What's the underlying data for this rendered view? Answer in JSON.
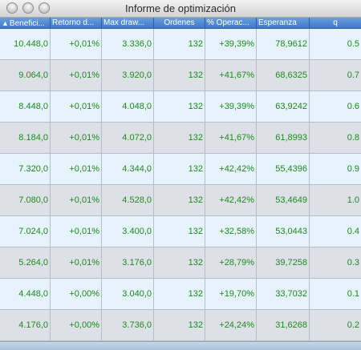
{
  "window": {
    "title": "Informe de optimización"
  },
  "columns": [
    {
      "label": "Benefici...",
      "sorted": true
    },
    {
      "label": "Retorno d..."
    },
    {
      "label": "Max draw..."
    },
    {
      "label": "Ordenes"
    },
    {
      "label": "% Operac..."
    },
    {
      "label": "Esperanza"
    },
    {
      "label": "q"
    }
  ],
  "rows": [
    [
      "10.448,0",
      "+0,01%",
      "3.336,0",
      "132",
      "+39,39%",
      "78,9612",
      "0.5"
    ],
    [
      "9.064,0",
      "+0,01%",
      "3.920,0",
      "132",
      "+41,67%",
      "68,6325",
      "0.7"
    ],
    [
      "8.448,0",
      "+0,01%",
      "4.048,0",
      "132",
      "+39,39%",
      "63,9242",
      "0.6"
    ],
    [
      "8.184,0",
      "+0,01%",
      "4.072,0",
      "132",
      "+41,67%",
      "61,8993",
      "0.8"
    ],
    [
      "7.320,0",
      "+0,01%",
      "4.344,0",
      "132",
      "+42,42%",
      "55,4396",
      "0.9"
    ],
    [
      "7.080,0",
      "+0,01%",
      "4.528,0",
      "132",
      "+42,42%",
      "53,4649",
      "1.0"
    ],
    [
      "7.024,0",
      "+0,01%",
      "3.400,0",
      "132",
      "+32,58%",
      "53,0443",
      "0.4"
    ],
    [
      "5.264,0",
      "+0,01%",
      "3.176,0",
      "132",
      "+28,79%",
      "39,7258",
      "0.3"
    ],
    [
      "4.448,0",
      "+0,00%",
      "3.040,0",
      "132",
      "+19,70%",
      "33,7032",
      "0.1"
    ],
    [
      "4.176,0",
      "+0,00%",
      "3.736,0",
      "132",
      "+24,24%",
      "31,6268",
      "0.2"
    ]
  ],
  "colors": {
    "value_text": "#1c8b1c",
    "header_bg": "#4f86d2",
    "row_odd": "#e7f3fb",
    "row_even": "#dde0e6"
  }
}
